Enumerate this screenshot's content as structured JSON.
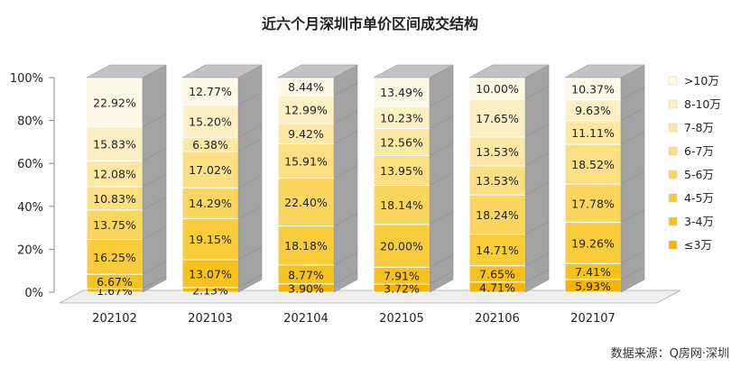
{
  "chart_data": {
    "type": "bar",
    "stacked": true,
    "percent": true,
    "three_d": true,
    "title": "近六个月深圳市单价区间成交结构",
    "source": "数据来源：Q房网·深圳",
    "categories": [
      "202102",
      "202103",
      "202104",
      "202105",
      "202106",
      "202107"
    ],
    "yticks": [
      "0%",
      "20%",
      "40%",
      "60%",
      "80%",
      "100%"
    ],
    "ylim": [
      0,
      100
    ],
    "legend_position": "right",
    "series": [
      {
        "name": "≤3万",
        "color": "#F4B400",
        "values": [
          1.67,
          2.13,
          3.9,
          3.72,
          4.71,
          5.93
        ]
      },
      {
        "name": "3-4万",
        "color": "#F7C21C",
        "values": [
          6.67,
          13.07,
          8.77,
          7.91,
          7.65,
          7.41
        ]
      },
      {
        "name": "4-5万",
        "color": "#F9CC3C",
        "values": [
          16.25,
          19.15,
          18.18,
          20.0,
          14.71,
          19.26
        ]
      },
      {
        "name": "5-6万",
        "color": "#FAD65E",
        "values": [
          13.75,
          14.29,
          22.4,
          18.14,
          18.24,
          17.78
        ]
      },
      {
        "name": "6-7万",
        "color": "#FBDF82",
        "values": [
          10.83,
          17.02,
          15.91,
          13.95,
          13.53,
          18.52
        ]
      },
      {
        "name": "7-8万",
        "color": "#FCE7A3",
        "values": [
          12.08,
          6.38,
          9.42,
          12.56,
          13.53,
          11.11
        ]
      },
      {
        "name": "8-10万",
        "color": "#FDEFC4",
        "values": [
          15.83,
          15.2,
          12.99,
          10.23,
          17.65,
          9.63
        ]
      },
      {
        "name": ">10万",
        "color": "#FEF8E6",
        "values": [
          22.92,
          12.77,
          8.44,
          13.49,
          10.0,
          10.37
        ]
      }
    ],
    "colors": {
      "side_fill": "#A3A3A3",
      "top_fill": "#C3C3C3",
      "floor_fill": "#EEEEEE",
      "axis": "#888888",
      "text": "#222222"
    }
  }
}
